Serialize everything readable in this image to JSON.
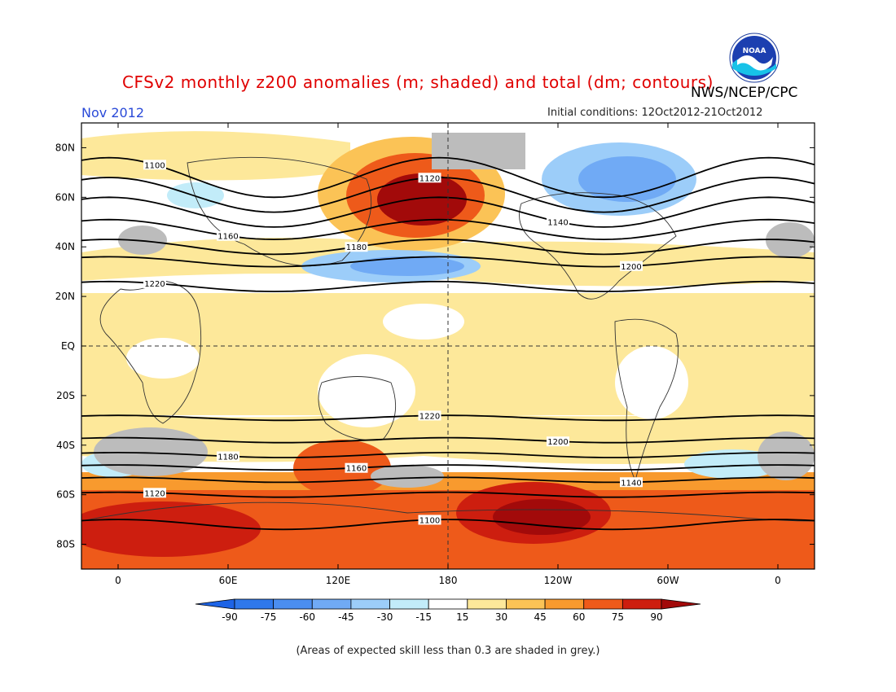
{
  "header": {
    "title": "CFSv2 monthly z200 anomalies (m; shaded) and total (dm; contours)",
    "agency": "NWS/NCEP/CPC",
    "month": "Nov 2012",
    "initial_conditions": "Initial conditions: 12Oct2012-21Oct2012",
    "logo_text": "NOAA"
  },
  "footnote": "(Areas of expected skill less than 0.3 are shaded in grey.)",
  "map": {
    "lat_labels": [
      "80N",
      "60N",
      "40N",
      "20N",
      "EQ",
      "20S",
      "40S",
      "60S",
      "80S"
    ],
    "lat_values": [
      80,
      60,
      40,
      20,
      0,
      -20,
      -40,
      -60,
      -80
    ],
    "lon_labels": [
      "0",
      "60E",
      "120E",
      "180",
      "120W",
      "60W",
      "0"
    ],
    "lon_values": [
      0,
      60,
      120,
      180,
      240,
      300,
      360
    ],
    "lon_range": [
      -20,
      380
    ],
    "lat_range": [
      -90,
      90
    ]
  },
  "colorbar": {
    "tick_labels": [
      "-90",
      "-75",
      "-60",
      "-45",
      "-30",
      "-15",
      "15",
      "30",
      "45",
      "60",
      "75",
      "90"
    ],
    "colors": [
      "#1e64e6",
      "#2f78eb",
      "#4b8ef0",
      "#70aaf5",
      "#9ccdf9",
      "#c2ecf9",
      "#ffffff",
      "#fde89a",
      "#fbc356",
      "#f89a2e",
      "#ee5a1a",
      "#cd1e0f",
      "#a20a0a"
    ],
    "grey_color": "#bcbcbc"
  },
  "contours": [
    {
      "label": "1100",
      "lat": 68,
      "amp": 8,
      "phase": 175
    },
    {
      "label": "1120",
      "lat": 61,
      "amp": 7,
      "phase": 175
    },
    {
      "label": "1140",
      "lat": 54,
      "amp": 6,
      "phase": 175
    },
    {
      "label": "1160",
      "lat": 47,
      "amp": 4,
      "phase": 175
    },
    {
      "label": "1180",
      "lat": 40,
      "amp": 3,
      "phase": 175
    },
    {
      "label": "1200",
      "lat": 34,
      "amp": 2,
      "phase": 175
    },
    {
      "label": "1220",
      "lat": 24,
      "amp": 2,
      "phase": 175
    },
    {
      "label": "1220",
      "lat": -29,
      "amp": 1,
      "phase": 0
    },
    {
      "label": "1200",
      "lat": -38,
      "amp": 1,
      "phase": 0
    },
    {
      "label": "1180",
      "lat": -44,
      "amp": 1,
      "phase": 0
    },
    {
      "label": "1160",
      "lat": -49,
      "amp": 1,
      "phase": 0
    },
    {
      "label": "1140",
      "lat": -54,
      "amp": 1,
      "phase": 0
    },
    {
      "label": "1120",
      "lat": -60,
      "amp": 1,
      "phase": 0
    },
    {
      "label": "1100",
      "lat": -72,
      "amp": 2,
      "phase": 0
    }
  ]
}
